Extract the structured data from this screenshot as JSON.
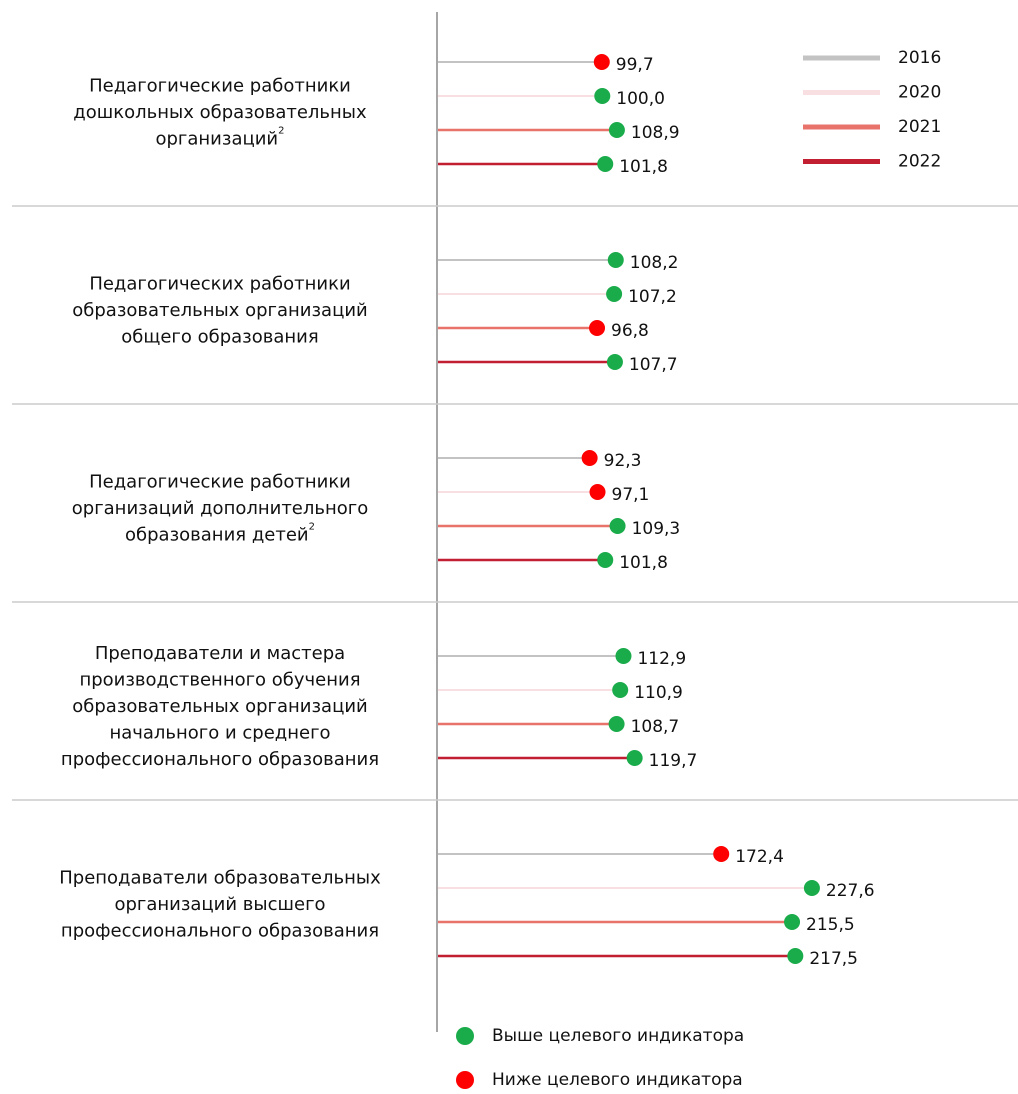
{
  "chart_data": {
    "type": "lollipop",
    "categories": [
      "Педагогические работники\nдошкольных образовательных\nорганизаций",
      "Педагогических работники\nобразовательных организаций\nобщего образования",
      "Педагогические работники\nорганизаций дополнительного\nобразования детей",
      "Преподаватели и мастера\nпроизводственного обучения\nобразовательных организаций\nначального и среднего\nпрофессионального образования",
      "Преподаватели образовательных\nорганизаций высшего\nпрофессионального образования"
    ],
    "category_notes": [
      "2",
      null,
      "2",
      null,
      null
    ],
    "series": [
      {
        "name": "2016",
        "color": "#c3c3c3",
        "values": [
          99.7,
          108.2,
          92.3,
          112.9,
          172.4
        ],
        "value_labels": [
          "99,7",
          "108,2",
          "92,3",
          "112,9",
          "172,4"
        ],
        "above_target": [
          false,
          true,
          false,
          true,
          false
        ]
      },
      {
        "name": "2020",
        "color": "#f8dfe2",
        "values": [
          100.0,
          107.2,
          97.1,
          110.9,
          227.6
        ],
        "value_labels": [
          "100,0",
          "107,2",
          "97,1",
          "110,9",
          "227,6"
        ],
        "above_target": [
          true,
          true,
          false,
          true,
          true
        ]
      },
      {
        "name": "2021",
        "color": "#e8736b",
        "values": [
          108.9,
          96.8,
          109.3,
          108.7,
          215.5
        ],
        "value_labels": [
          "108,9",
          "96,8",
          "109,3",
          "108,7",
          "215,5"
        ],
        "above_target": [
          true,
          false,
          true,
          true,
          true
        ]
      },
      {
        "name": "2022",
        "color": "#c21f32",
        "values": [
          101.8,
          107.7,
          101.8,
          119.7,
          217.5
        ],
        "value_labels": [
          "101,8",
          "107,7",
          "101,8",
          "119,7",
          "217,5"
        ],
        "above_target": [
          true,
          true,
          true,
          true,
          true
        ]
      }
    ],
    "point_legend": [
      {
        "name": "Выше целевого индикатора",
        "color": "#1aab4b"
      },
      {
        "name": "Ниже целевого индикатора",
        "color": "#ff0000"
      }
    ],
    "xlim": [
      0,
      350
    ]
  }
}
